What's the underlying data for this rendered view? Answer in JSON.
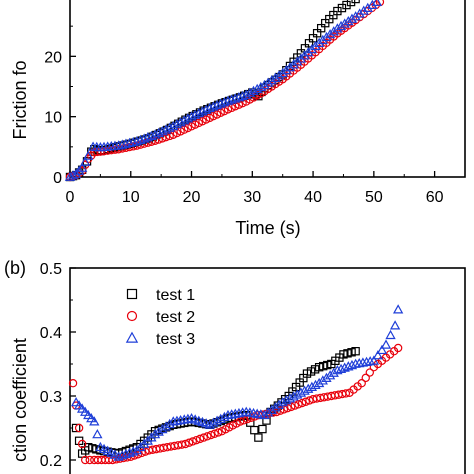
{
  "panels": [
    {
      "panel_label": "",
      "chart_data": {
        "type": "scatter",
        "title": "",
        "xlabel": "Time (s)",
        "ylabel": "Friction fo",
        "xlim": [
          0,
          65
        ],
        "ylim": [
          0,
          30
        ],
        "xticks": [
          0,
          10,
          20,
          30,
          40,
          50,
          60
        ],
        "yticks": [
          0,
          10,
          20
        ],
        "legend": "",
        "series": [
          {
            "color": "#000000",
            "marker": "square",
            "points": [
              [
                0,
                0
              ],
              [
                1,
                0.3
              ],
              [
                2,
                1.2
              ],
              [
                2.8,
                2.6
              ],
              [
                3.5,
                4.2
              ],
              [
                4,
                4.6
              ],
              [
                5,
                4.3
              ],
              [
                7,
                4.8
              ],
              [
                10,
                5.5
              ],
              [
                13,
                6.4
              ],
              [
                16,
                7.8
              ],
              [
                19,
                9.5
              ],
              [
                22,
                11
              ],
              [
                25,
                12.2
              ],
              [
                28,
                13.2
              ],
              [
                30,
                14
              ],
              [
                31,
                13.4
              ],
              [
                32,
                14.8
              ],
              [
                35,
                17
              ],
              [
                38,
                20.5
              ],
              [
                40,
                23
              ],
              [
                42,
                25.5
              ],
              [
                44,
                27.5
              ],
              [
                45.5,
                28.5
              ],
              [
                47,
                29.5
              ]
            ]
          },
          {
            "color": "#e8000b",
            "marker": "circle",
            "points": [
              [
                0,
                0
              ],
              [
                1,
                0.3
              ],
              [
                2,
                1
              ],
              [
                3,
                3
              ],
              [
                4,
                4.1
              ],
              [
                5,
                4.2
              ],
              [
                8,
                4.6
              ],
              [
                11,
                5.2
              ],
              [
                14,
                6
              ],
              [
                17,
                7
              ],
              [
                20,
                8.4
              ],
              [
                23,
                9.8
              ],
              [
                26,
                11.2
              ],
              [
                29,
                12.5
              ],
              [
                32,
                14.2
              ],
              [
                35,
                16.2
              ],
              [
                38,
                18.6
              ],
              [
                41,
                21.2
              ],
              [
                44,
                23.8
              ],
              [
                47,
                26
              ],
              [
                49,
                27.5
              ],
              [
                51,
                29
              ]
            ]
          },
          {
            "color": "#1f3fd8",
            "marker": "triangle",
            "points": [
              [
                0,
                0
              ],
              [
                1,
                0.5
              ],
              [
                2,
                1.5
              ],
              [
                3,
                3.5
              ],
              [
                3.8,
                5
              ],
              [
                5,
                4.9
              ],
              [
                8,
                5.2
              ],
              [
                11,
                5.9
              ],
              [
                14,
                7
              ],
              [
                17,
                8.4
              ],
              [
                20,
                10
              ],
              [
                23,
                11.4
              ],
              [
                26,
                12.6
              ],
              [
                29,
                13.6
              ],
              [
                32,
                15.2
              ],
              [
                35,
                17.2
              ],
              [
                38,
                19.6
              ],
              [
                41,
                22.2
              ],
              [
                44,
                24.6
              ],
              [
                47,
                26.6
              ],
              [
                49,
                28
              ],
              [
                50.5,
                29
              ]
            ]
          }
        ]
      }
    },
    {
      "panel_label": "(b)",
      "chart_data": {
        "type": "scatter",
        "title": "",
        "xlabel": "",
        "ylabel": "ction coefficient",
        "xlim": [
          0,
          65
        ],
        "ylim": [
          0.15,
          0.5
        ],
        "yticks": [
          0.2,
          0.3,
          0.4,
          0.5
        ],
        "ytick_labels": [
          "0.2",
          "0.3",
          "0.4",
          "0.5"
        ],
        "legend": "top-left",
        "series": [
          {
            "name": "test 1",
            "color": "#000000",
            "marker": "square",
            "points": [
              [
                1,
                0.25
              ],
              [
                2,
                0.21
              ],
              [
                3,
                0.22
              ],
              [
                5,
                0.215
              ],
              [
                8,
                0.21
              ],
              [
                11,
                0.22
              ],
              [
                14,
                0.245
              ],
              [
                17,
                0.255
              ],
              [
                20,
                0.26
              ],
              [
                23,
                0.255
              ],
              [
                26,
                0.265
              ],
              [
                29,
                0.27
              ],
              [
                31,
                0.235
              ],
              [
                33,
                0.275
              ],
              [
                36,
                0.3
              ],
              [
                39,
                0.335
              ],
              [
                41,
                0.345
              ],
              [
                43,
                0.35
              ],
              [
                45,
                0.365
              ],
              [
                47,
                0.37
              ]
            ]
          },
          {
            "name": "test 2",
            "color": "#e8000b",
            "marker": "circle",
            "points": [
              [
                0.5,
                0.32
              ],
              [
                1.5,
                0.25
              ],
              [
                2.5,
                0.2
              ],
              [
                4,
                0.2
              ],
              [
                7,
                0.2
              ],
              [
                10,
                0.205
              ],
              [
                13,
                0.215
              ],
              [
                16,
                0.22
              ],
              [
                19,
                0.225
              ],
              [
                22,
                0.235
              ],
              [
                25,
                0.245
              ],
              [
                28,
                0.26
              ],
              [
                31,
                0.27
              ],
              [
                34,
                0.275
              ],
              [
                37,
                0.285
              ],
              [
                40,
                0.295
              ],
              [
                43,
                0.3
              ],
              [
                46,
                0.305
              ],
              [
                48,
                0.32
              ],
              [
                50,
                0.345
              ],
              [
                52,
                0.36
              ],
              [
                54,
                0.375
              ]
            ]
          },
          {
            "name": "test 3",
            "color": "#1f3fd8",
            "marker": "triangle",
            "points": [
              [
                1,
                0.29
              ],
              [
                2,
                0.28
              ],
              [
                3,
                0.27
              ],
              [
                4,
                0.26
              ],
              [
                5,
                0.22
              ],
              [
                8,
                0.205
              ],
              [
                11,
                0.215
              ],
              [
                14,
                0.24
              ],
              [
                17,
                0.26
              ],
              [
                20,
                0.265
              ],
              [
                23,
                0.255
              ],
              [
                26,
                0.27
              ],
              [
                29,
                0.275
              ],
              [
                32,
                0.27
              ],
              [
                35,
                0.29
              ],
              [
                38,
                0.305
              ],
              [
                41,
                0.32
              ],
              [
                44,
                0.34
              ],
              [
                47,
                0.35
              ],
              [
                50,
                0.355
              ],
              [
                52,
                0.38
              ],
              [
                53.5,
                0.41
              ],
              [
                54,
                0.435
              ]
            ]
          }
        ]
      }
    }
  ]
}
